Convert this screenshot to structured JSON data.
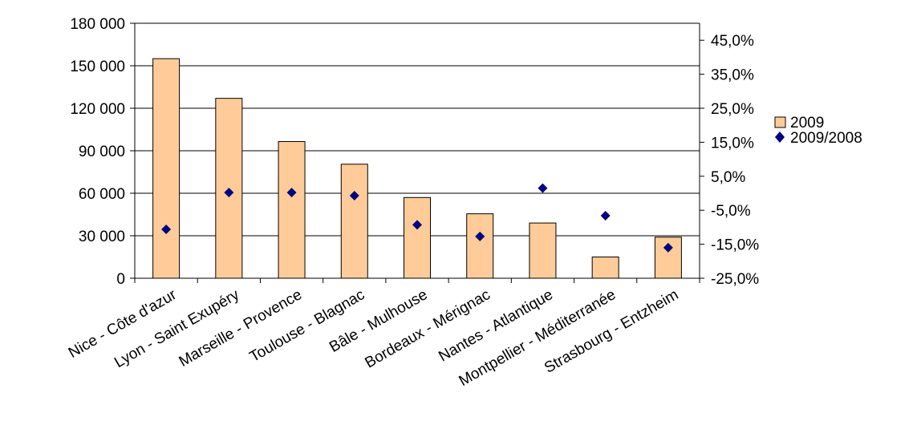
{
  "chart_data": {
    "type": "bar",
    "categories": [
      "Nice - Côte d'azur",
      "Lyon - Saint Exupéry",
      "Marseille - Provence",
      "Toulouse - Blagnac",
      "Bâle - Mulhouse",
      "Bordeaux - Mérignac",
      "Nantes - Atlantique",
      "Montpellier - Méditerranée",
      "Strasbourg - Entzheim"
    ],
    "series": [
      {
        "name": "2009",
        "type": "bar",
        "axis": "left",
        "color": "#FFCC99",
        "values": [
          155000,
          127000,
          96500,
          80500,
          57000,
          45500,
          39000,
          15000,
          29000
        ]
      },
      {
        "name": "2009/2008",
        "type": "scatter",
        "axis": "right",
        "marker": "diamond",
        "color": "#000080",
        "values": [
          -10.6,
          0.2,
          0.2,
          -0.7,
          -9.3,
          -12.7,
          1.5,
          -6.6,
          -16.0
        ]
      }
    ],
    "left_axis": {
      "min": 0,
      "max": 180000,
      "step": 30000,
      "tick_labels": [
        "0",
        "30 000",
        "60 000",
        "90 000",
        "120 000",
        "150 000",
        "180 000"
      ]
    },
    "right_axis": {
      "min": -25,
      "max": 50,
      "step": 10,
      "tick_values": [
        -25,
        -15,
        -5,
        5,
        15,
        25,
        35,
        45
      ],
      "tick_labels": [
        "-25,0%",
        "-15,0%",
        "-5,0%",
        "5,0%",
        "15,0%",
        "25,0%",
        "35,0%",
        "45,0%"
      ]
    },
    "grid": true,
    "legend_position": "right"
  }
}
